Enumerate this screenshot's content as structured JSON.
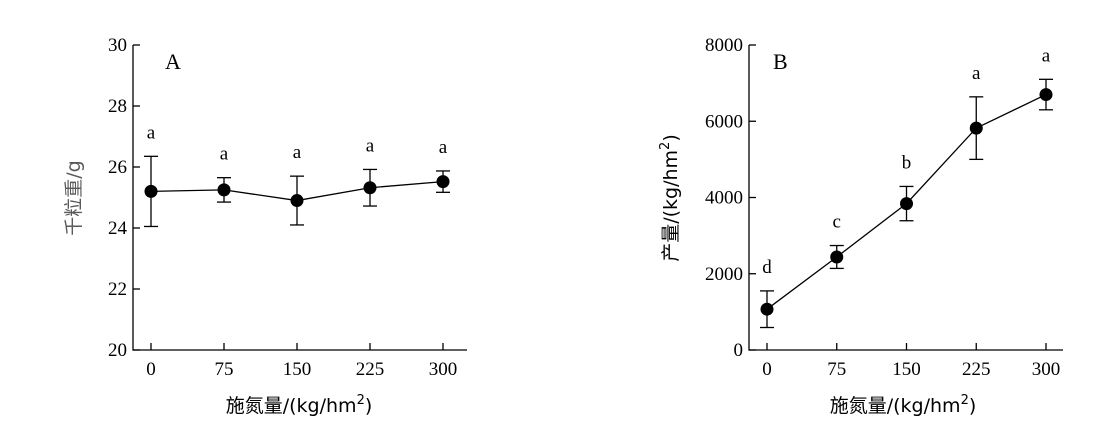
{
  "chart_data": [
    {
      "type": "line",
      "panel_label": "A",
      "x": [
        0,
        75,
        150,
        225,
        300
      ],
      "x_tick_labels": [
        "0",
        "75",
        "150",
        "225",
        "300"
      ],
      "values": [
        25.2,
        25.25,
        24.9,
        25.32,
        25.52
      ],
      "errors": [
        1.15,
        0.4,
        0.8,
        0.6,
        0.35
      ],
      "significance": [
        "a",
        "a",
        "a",
        "a",
        "a"
      ],
      "xlabel": "施氮量/(kg/hm",
      "xlabel_sup": "2",
      "xlabel_end": ")",
      "ylabel": "千粒重/g",
      "ylim": [
        20,
        30
      ],
      "y_ticks": [
        20,
        22,
        24,
        26,
        28,
        30
      ],
      "y_tick_labels": [
        "20",
        "22",
        "24",
        "26",
        "28",
        "30"
      ],
      "grid": false,
      "legend": "none"
    },
    {
      "type": "line",
      "panel_label": "B",
      "x": [
        0,
        75,
        150,
        225,
        300
      ],
      "x_tick_labels": [
        "0",
        "75",
        "150",
        "225",
        "300"
      ],
      "values": [
        1070,
        2440,
        3840,
        5820,
        6700
      ],
      "errors": [
        480,
        300,
        450,
        820,
        400
      ],
      "significance": [
        "d",
        "c",
        "b",
        "a",
        "a"
      ],
      "xlabel": "施氮量/(kg/hm",
      "xlabel_sup": "2",
      "xlabel_end": ")",
      "ylabel": "产量/(kg/hm",
      "ylabel_sup": "2",
      "ylabel_end": ")",
      "ylim": [
        0,
        8000
      ],
      "y_ticks": [
        0,
        2000,
        4000,
        6000,
        8000
      ],
      "y_tick_labels": [
        "0",
        "2000",
        "4000",
        "6000",
        "8000"
      ],
      "grid": false,
      "legend": "none"
    }
  ]
}
